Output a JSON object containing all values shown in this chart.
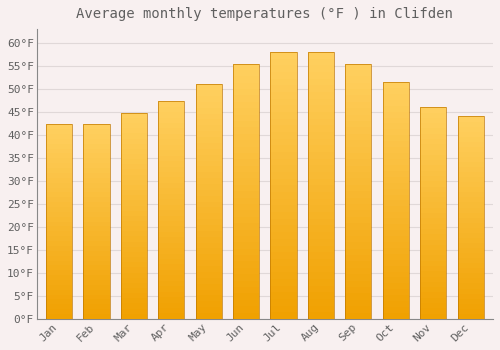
{
  "title": "Average monthly temperatures (°F ) in Clifden",
  "months": [
    "Jan",
    "Feb",
    "Mar",
    "Apr",
    "May",
    "Jun",
    "Jul",
    "Aug",
    "Sep",
    "Oct",
    "Nov",
    "Dec"
  ],
  "values": [
    42.3,
    42.3,
    44.8,
    47.3,
    51.0,
    55.5,
    58.0,
    58.0,
    55.5,
    51.5,
    46.0,
    44.0
  ],
  "bar_color_light": "#FFD060",
  "bar_color_dark": "#F0A000",
  "bar_border_color": "#C07800",
  "background_color": "#F8F0F0",
  "plot_bg_color": "#F8F0F0",
  "grid_color": "#E0D8D8",
  "text_color": "#606060",
  "ylabel_ticks": [
    "0°F",
    "5°F",
    "10°F",
    "15°F",
    "20°F",
    "25°F",
    "30°F",
    "35°F",
    "40°F",
    "45°F",
    "50°F",
    "55°F",
    "60°F"
  ],
  "ytick_values": [
    0,
    5,
    10,
    15,
    20,
    25,
    30,
    35,
    40,
    45,
    50,
    55,
    60
  ],
  "ylim": [
    0,
    63
  ],
  "title_fontsize": 10,
  "tick_fontsize": 8,
  "bar_width": 0.7
}
